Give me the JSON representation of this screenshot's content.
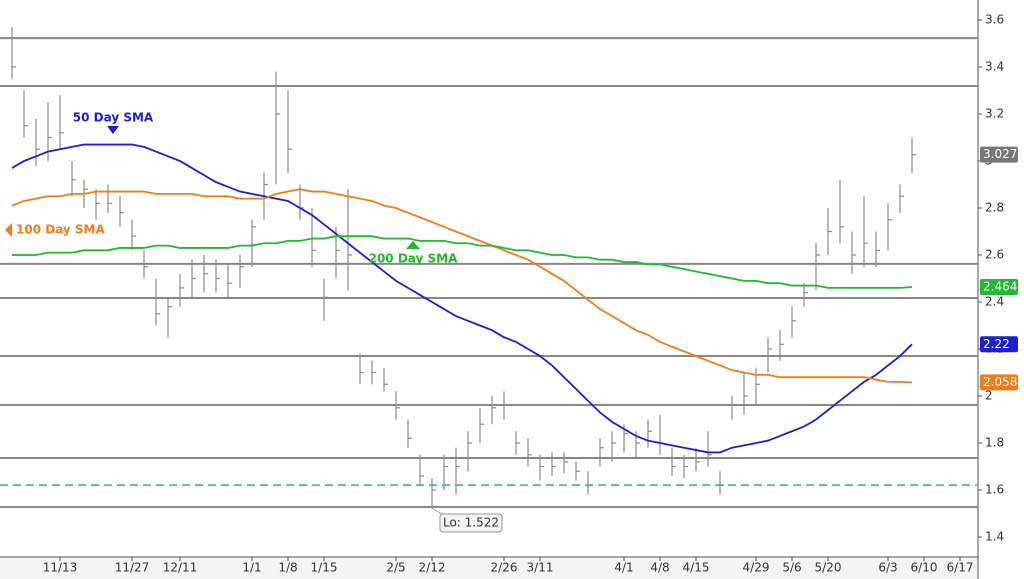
{
  "chart_data": {
    "type": "hlc",
    "categories": [
      null,
      null,
      null,
      null,
      "11/13",
      null,
      null,
      null,
      null,
      null,
      "11/27",
      null,
      null,
      null,
      "12/11",
      null,
      null,
      null,
      null,
      null,
      "1/1",
      null,
      null,
      "1/8",
      null,
      null,
      "1/15",
      null,
      null,
      null,
      null,
      null,
      "2/5",
      null,
      null,
      "2/12",
      null,
      null,
      null,
      null,
      null,
      "2/26",
      null,
      null,
      "3/11",
      null,
      null,
      null,
      null,
      null,
      null,
      "4/1",
      null,
      null,
      "4/8",
      null,
      null,
      "4/15",
      null,
      null,
      null,
      null,
      "4/29",
      null,
      null,
      "5/6",
      null,
      null,
      "5/20",
      null,
      null,
      null,
      null,
      "6/3",
      null,
      null,
      "6/10",
      null,
      null,
      "6/17",
      null
    ],
    "bars": {
      "color": "#8a8a8a",
      "high": [
        3.57,
        3.3,
        3.18,
        3.25,
        3.28,
        3.0,
        2.92,
        2.88,
        2.9,
        2.85,
        2.75,
        2.62,
        2.5,
        2.42,
        2.52,
        2.58,
        2.6,
        2.58,
        2.56,
        2.6,
        2.75,
        2.95,
        3.38,
        3.3,
        2.9,
        2.8,
        2.5,
        2.72,
        2.88,
        2.18,
        2.15,
        2.12,
        2.02,
        1.9,
        1.75,
        1.65,
        1.75,
        1.78,
        1.85,
        1.95,
        2.0,
        2.02,
        1.85,
        1.82,
        1.75,
        1.76,
        1.76,
        1.72,
        1.68,
        1.82,
        1.85,
        1.88,
        1.85,
        1.9,
        1.92,
        1.78,
        1.75,
        1.78,
        1.85,
        1.68,
        2.0,
        2.1,
        2.12,
        2.25,
        2.28,
        2.38,
        2.48,
        2.65,
        2.8,
        2.92,
        2.7,
        2.85,
        2.7,
        2.82,
        2.9,
        3.1,
        null,
        null,
        null,
        null,
        null
      ],
      "low": [
        3.35,
        3.1,
        2.98,
        3.0,
        3.05,
        2.85,
        2.8,
        2.75,
        2.78,
        2.72,
        2.62,
        2.5,
        2.3,
        2.25,
        2.38,
        2.42,
        2.44,
        2.44,
        2.42,
        2.46,
        2.55,
        2.75,
        2.9,
        2.95,
        2.75,
        2.55,
        2.32,
        2.5,
        2.45,
        2.05,
        2.05,
        2.02,
        1.9,
        1.78,
        1.62,
        1.522,
        1.6,
        1.58,
        1.68,
        1.8,
        1.88,
        1.9,
        1.75,
        1.7,
        1.64,
        1.66,
        1.67,
        1.64,
        1.58,
        1.7,
        1.72,
        1.76,
        1.74,
        1.78,
        1.75,
        1.66,
        1.65,
        1.68,
        1.7,
        1.58,
        1.9,
        1.92,
        1.96,
        2.1,
        2.15,
        2.25,
        2.38,
        2.45,
        2.6,
        2.65,
        2.52,
        2.55,
        2.55,
        2.62,
        2.78,
        2.95,
        null,
        null,
        null,
        null,
        null
      ],
      "close": [
        3.4,
        3.15,
        3.05,
        3.1,
        3.12,
        2.92,
        2.88,
        2.82,
        2.82,
        2.78,
        2.68,
        2.55,
        2.35,
        2.38,
        2.46,
        2.5,
        2.52,
        2.5,
        2.48,
        2.55,
        2.72,
        2.9,
        3.2,
        3.05,
        2.8,
        2.62,
        2.42,
        2.62,
        2.6,
        2.1,
        2.1,
        2.05,
        1.95,
        1.82,
        1.66,
        1.6,
        1.7,
        1.7,
        1.8,
        1.88,
        1.95,
        1.96,
        1.8,
        1.75,
        1.7,
        1.7,
        1.72,
        1.68,
        1.62,
        1.78,
        1.8,
        1.84,
        1.8,
        1.85,
        1.8,
        1.7,
        1.7,
        1.72,
        1.75,
        1.62,
        1.96,
        2.0,
        2.05,
        2.2,
        2.22,
        2.32,
        2.44,
        2.6,
        2.7,
        2.72,
        2.6,
        2.65,
        2.62,
        2.75,
        2.85,
        3.027,
        null,
        null,
        null,
        null,
        null
      ]
    },
    "series": [
      {
        "name": "50 Day SMA",
        "color": "#1f1fd0",
        "values": [
          2.97,
          3.0,
          3.02,
          3.04,
          3.05,
          3.06,
          3.07,
          3.07,
          3.07,
          3.07,
          3.07,
          3.06,
          3.04,
          3.02,
          3.0,
          2.97,
          2.94,
          2.91,
          2.89,
          2.87,
          2.86,
          2.85,
          2.84,
          2.83,
          2.8,
          2.77,
          2.73,
          2.69,
          2.65,
          2.61,
          2.57,
          2.53,
          2.49,
          2.46,
          2.43,
          2.4,
          2.37,
          2.34,
          2.32,
          2.3,
          2.28,
          2.25,
          2.23,
          2.2,
          2.17,
          2.13,
          2.08,
          2.03,
          1.98,
          1.93,
          1.89,
          1.86,
          1.83,
          1.81,
          1.8,
          1.79,
          1.78,
          1.77,
          1.76,
          1.76,
          1.78,
          1.79,
          1.8,
          1.81,
          1.83,
          1.85,
          1.87,
          1.9,
          1.94,
          1.98,
          2.02,
          2.06,
          2.09,
          2.13,
          2.17,
          2.22,
          null,
          null,
          null,
          null,
          null
        ]
      },
      {
        "name": "100 Day SMA",
        "color": "#f07d1a",
        "values": [
          2.81,
          2.83,
          2.84,
          2.85,
          2.85,
          2.86,
          2.86,
          2.87,
          2.87,
          2.87,
          2.87,
          2.87,
          2.86,
          2.86,
          2.86,
          2.86,
          2.85,
          2.85,
          2.85,
          2.84,
          2.84,
          2.84,
          2.86,
          2.87,
          2.88,
          2.87,
          2.87,
          2.86,
          2.85,
          2.84,
          2.83,
          2.81,
          2.8,
          2.78,
          2.76,
          2.74,
          2.72,
          2.7,
          2.68,
          2.66,
          2.64,
          2.62,
          2.6,
          2.58,
          2.55,
          2.52,
          2.49,
          2.45,
          2.41,
          2.37,
          2.34,
          2.31,
          2.28,
          2.26,
          2.23,
          2.21,
          2.19,
          2.17,
          2.15,
          2.13,
          2.11,
          2.1,
          2.09,
          2.09,
          2.08,
          2.08,
          2.08,
          2.08,
          2.08,
          2.08,
          2.08,
          2.08,
          2.07,
          2.06,
          2.06,
          2.058,
          null,
          null,
          null,
          null,
          null
        ]
      },
      {
        "name": "200 Day SMA",
        "color": "#22b832",
        "values": [
          2.6,
          2.6,
          2.6,
          2.61,
          2.61,
          2.61,
          2.62,
          2.62,
          2.62,
          2.63,
          2.63,
          2.63,
          2.64,
          2.64,
          2.63,
          2.63,
          2.63,
          2.63,
          2.63,
          2.64,
          2.64,
          2.65,
          2.65,
          2.66,
          2.66,
          2.67,
          2.67,
          2.68,
          2.68,
          2.68,
          2.68,
          2.67,
          2.67,
          2.67,
          2.66,
          2.66,
          2.66,
          2.65,
          2.65,
          2.64,
          2.64,
          2.63,
          2.62,
          2.62,
          2.61,
          2.6,
          2.6,
          2.59,
          2.59,
          2.58,
          2.58,
          2.57,
          2.57,
          2.56,
          2.56,
          2.55,
          2.54,
          2.53,
          2.52,
          2.51,
          2.5,
          2.49,
          2.49,
          2.48,
          2.48,
          2.47,
          2.47,
          2.47,
          2.46,
          2.46,
          2.46,
          2.46,
          2.46,
          2.46,
          2.46,
          2.464,
          null,
          null,
          null,
          null,
          null
        ]
      }
    ],
    "levels": [
      3.523,
      3.319,
      2.562,
      2.417,
      2.17,
      1.962,
      1.736,
      1.528
    ],
    "dashed_level": 1.621,
    "annotation": "Lo: 1.522",
    "ylim": [
      1.315,
      3.685
    ],
    "yticks": [
      3.6,
      3.4,
      3.2,
      3,
      2.8,
      2.6,
      2.4,
      2.2,
      2,
      1.8,
      1.6,
      1.4
    ]
  }
}
